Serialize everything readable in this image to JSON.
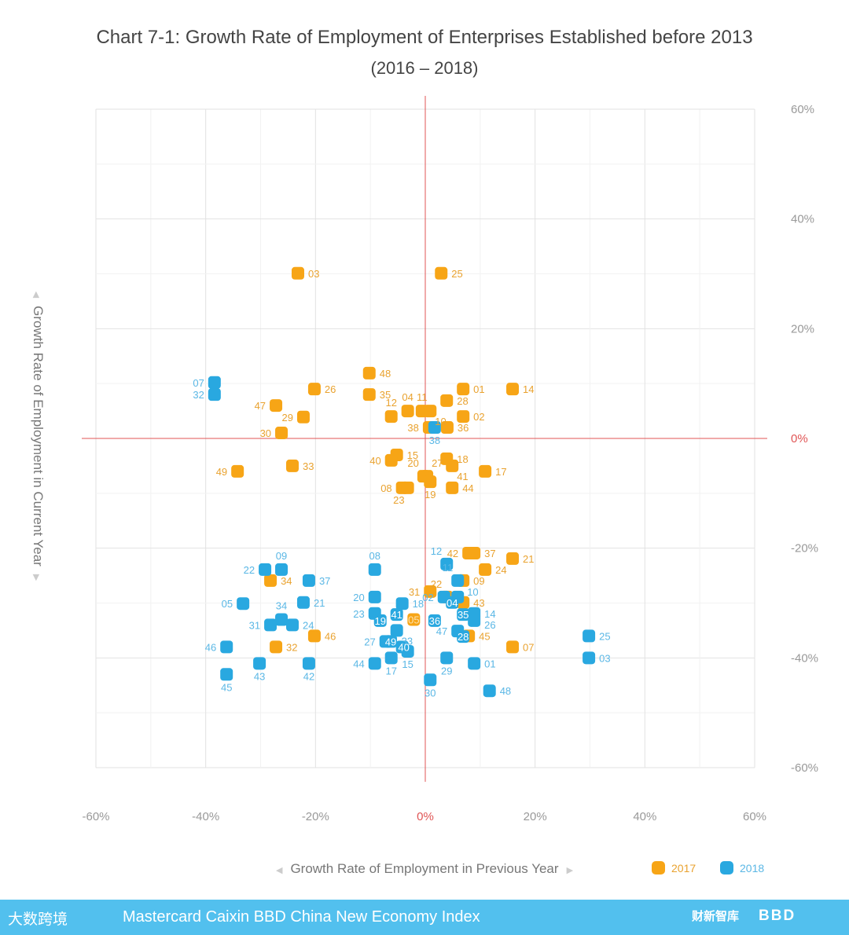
{
  "chart_data": {
    "type": "scatter",
    "title": "Chart 7-1: Growth Rate of Employment of Enterprises Established before 2013",
    "subtitle": "(2016 – 2018)",
    "xlabel": "Growth Rate of Employment in Previous Year",
    "ylabel": "Growth Rate of Employment in Current Year",
    "xlim": [
      -60,
      60
    ],
    "ylim": [
      -60,
      60
    ],
    "x_ticks": [
      "-60%",
      "-40%",
      "-20%",
      "0%",
      "20%",
      "40%",
      "60%"
    ],
    "y_ticks": [
      "60%",
      "40%",
      "20%",
      "0%",
      "-20%",
      "-40%",
      "-60%"
    ],
    "grid": true,
    "legend_position": "bottom-right",
    "series": [
      {
        "name": "2017",
        "color": "#f7a516",
        "label_color": "#e9a22f",
        "points": [
          {
            "id": "03",
            "x": -23.2,
            "y": 30.1,
            "pos": "r"
          },
          {
            "id": "25",
            "x": 2.9,
            "y": 30.1,
            "pos": "r"
          },
          {
            "id": "48",
            "x": -10.2,
            "y": 11.9,
            "pos": "r"
          },
          {
            "id": "26",
            "x": -20.2,
            "y": 9.0,
            "pos": "r"
          },
          {
            "id": "35",
            "x": -10.2,
            "y": 8.0,
            "pos": "r"
          },
          {
            "id": "01",
            "x": 6.9,
            "y": 9.0,
            "pos": "r"
          },
          {
            "id": "14",
            "x": 15.9,
            "y": 9.0,
            "pos": "r"
          },
          {
            "id": "47",
            "x": -27.2,
            "y": 6.0,
            "pos": "l"
          },
          {
            "id": "29",
            "x": -22.2,
            "y": 3.9,
            "pos": "l"
          },
          {
            "id": "30",
            "x": -26.2,
            "y": 1.0,
            "pos": "l"
          },
          {
            "id": "12",
            "x": -6.2,
            "y": 4.0,
            "pos": "t"
          },
          {
            "id": "04",
            "x": -3.2,
            "y": 5.0,
            "pos": "t"
          },
          {
            "id": "11",
            "x": -0.6,
            "y": 5.0,
            "pos": "t"
          },
          {
            "id": "10",
            "x": 0.9,
            "y": 5.0,
            "pos": "br"
          },
          {
            "id": "28",
            "x": 3.9,
            "y": 6.9,
            "pos": "r"
          },
          {
            "id": "02",
            "x": 6.9,
            "y": 4.0,
            "pos": "r"
          },
          {
            "id": "38",
            "x": 0.7,
            "y": 2.0,
            "pos": "l"
          },
          {
            "id": "36",
            "x": 4.0,
            "y": 2.0,
            "pos": "r"
          },
          {
            "id": "15",
            "x": -5.2,
            "y": -3.0,
            "pos": "r"
          },
          {
            "id": "40",
            "x": -6.2,
            "y": -4.0,
            "pos": "l"
          },
          {
            "id": "18",
            "x": 3.9,
            "y": -3.7,
            "pos": "r"
          },
          {
            "id": "41",
            "x": 4.9,
            "y": -5.0,
            "pos": "br"
          },
          {
            "id": "17",
            "x": 10.9,
            "y": -6.0,
            "pos": "r"
          },
          {
            "id": "49",
            "x": -34.2,
            "y": -6.0,
            "pos": "l"
          },
          {
            "id": "33",
            "x": -24.2,
            "y": -5.0,
            "pos": "r"
          },
          {
            "id": "27",
            "x": 0.3,
            "y": -6.9,
            "pos": "tr"
          },
          {
            "id": "20",
            "x": -0.3,
            "y": -6.9,
            "pos": "tl"
          },
          {
            "id": "19",
            "x": 0.9,
            "y": -7.9,
            "pos": "b"
          },
          {
            "id": "08",
            "x": -4.2,
            "y": -9.0,
            "pos": "l"
          },
          {
            "id": "23",
            "x": -3.2,
            "y": -9.0,
            "pos": "bl"
          },
          {
            "id": "44",
            "x": 4.9,
            "y": -9.0,
            "pos": "r"
          },
          {
            "id": "42",
            "x": 7.9,
            "y": -20.9,
            "pos": "l"
          },
          {
            "id": "37",
            "x": 8.9,
            "y": -20.9,
            "pos": "r"
          },
          {
            "id": "21",
            "x": 15.9,
            "y": -21.9,
            "pos": "r"
          },
          {
            "id": "24",
            "x": 10.9,
            "y": -23.9,
            "pos": "r"
          },
          {
            "id": "09",
            "x": 6.9,
            "y": -25.9,
            "pos": "r"
          },
          {
            "id": "34",
            "x": -28.2,
            "y": -25.9,
            "pos": "r"
          },
          {
            "id": "31",
            "x": 0.9,
            "y": -27.9,
            "pos": "l"
          },
          {
            "id": "22",
            "x": 3.9,
            "y": -28.9,
            "pos": "tl"
          },
          {
            "id": "43",
            "x": 6.9,
            "y": -29.9,
            "pos": "r"
          },
          {
            "id": "05",
            "x": -2.1,
            "y": -33.0,
            "pos": "c"
          },
          {
            "id": "45",
            "x": 7.9,
            "y": -36.0,
            "pos": "r"
          },
          {
            "id": "46",
            "x": -20.2,
            "y": -36.0,
            "pos": "r"
          },
          {
            "id": "32",
            "x": -27.2,
            "y": -38.0,
            "pos": "r"
          },
          {
            "id": "07",
            "x": 15.9,
            "y": -38.0,
            "pos": "r"
          }
        ]
      },
      {
        "name": "2018",
        "color": "#29a8e0",
        "label_color": "#5ab7e5",
        "points": [
          {
            "id": "07",
            "x": -38.4,
            "y": 10.2,
            "pos": "l"
          },
          {
            "id": "32",
            "x": -38.4,
            "y": 8.0,
            "pos": "l"
          },
          {
            "id": "38",
            "x": 1.7,
            "y": 2.0,
            "pos": "b"
          },
          {
            "id": "09",
            "x": -26.2,
            "y": -23.9,
            "pos": "t"
          },
          {
            "id": "22",
            "x": -29.2,
            "y": -23.9,
            "pos": "l"
          },
          {
            "id": "37",
            "x": -21.2,
            "y": -25.9,
            "pos": "r"
          },
          {
            "id": "05",
            "x": -33.2,
            "y": -30.1,
            "pos": "l"
          },
          {
            "id": "21",
            "x": -22.2,
            "y": -29.9,
            "pos": "r"
          },
          {
            "id": "34",
            "x": -26.2,
            "y": -33.0,
            "pos": "t"
          },
          {
            "id": "31",
            "x": -28.2,
            "y": -34.0,
            "pos": "l"
          },
          {
            "id": "24",
            "x": -24.2,
            "y": -34.0,
            "pos": "r"
          },
          {
            "id": "46",
            "x": -36.2,
            "y": -38.0,
            "pos": "l"
          },
          {
            "id": "43",
            "x": -30.2,
            "y": -41.0,
            "pos": "b"
          },
          {
            "id": "42",
            "x": -21.2,
            "y": -41.0,
            "pos": "b"
          },
          {
            "id": "45",
            "x": -36.2,
            "y": -43.0,
            "pos": "b"
          },
          {
            "id": "08",
            "x": -9.2,
            "y": -23.9,
            "pos": "t"
          },
          {
            "id": "12",
            "x": 3.9,
            "y": -22.9,
            "pos": "tl"
          },
          {
            "id": "11",
            "x": 5.9,
            "y": -25.9,
            "pos": "tl"
          },
          {
            "id": "20",
            "x": -9.2,
            "y": -28.9,
            "pos": "l"
          },
          {
            "id": "18",
            "x": -4.2,
            "y": -30.1,
            "pos": "r"
          },
          {
            "id": "02",
            "x": 3.4,
            "y": -28.9,
            "pos": "l"
          },
          {
            "id": "10",
            "x": 5.9,
            "y": -28.9,
            "pos": "tr"
          },
          {
            "id": "04",
            "x": 4.9,
            "y": -29.9,
            "pos": "c"
          },
          {
            "id": "23",
            "x": -9.2,
            "y": -31.9,
            "pos": "l"
          },
          {
            "id": "19",
            "x": -8.2,
            "y": -33.2,
            "pos": "c"
          },
          {
            "id": "41",
            "x": -5.2,
            "y": -32.1,
            "pos": "c"
          },
          {
            "id": "36",
            "x": 1.7,
            "y": -33.2,
            "pos": "c"
          },
          {
            "id": "35",
            "x": 6.9,
            "y": -32.1,
            "pos": "c"
          },
          {
            "id": "14",
            "x": 8.9,
            "y": -31.9,
            "pos": "r"
          },
          {
            "id": "26",
            "x": 8.9,
            "y": -33.2,
            "pos": "br"
          },
          {
            "id": "33",
            "x": -5.2,
            "y": -35.0,
            "pos": "br"
          },
          {
            "id": "47",
            "x": 5.9,
            "y": -35.1,
            "pos": "l"
          },
          {
            "id": "28",
            "x": 6.9,
            "y": -36.1,
            "pos": "c"
          },
          {
            "id": "27",
            "x": -7.2,
            "y": -37.0,
            "pos": "l"
          },
          {
            "id": "49",
            "x": -6.3,
            "y": -37.0,
            "pos": "c"
          },
          {
            "id": "40",
            "x": -4.2,
            "y": -38.0,
            "pos": "c"
          },
          {
            "id": "15",
            "x": -3.2,
            "y": -38.8,
            "pos": "b"
          },
          {
            "id": "17",
            "x": -6.2,
            "y": -40.0,
            "pos": "b"
          },
          {
            "id": "44",
            "x": -9.2,
            "y": -41.0,
            "pos": "l"
          },
          {
            "id": "29",
            "x": 3.9,
            "y": -40.0,
            "pos": "b"
          },
          {
            "id": "01",
            "x": 8.9,
            "y": -41.0,
            "pos": "r"
          },
          {
            "id": "30",
            "x": 0.9,
            "y": -44.0,
            "pos": "b"
          },
          {
            "id": "48",
            "x": 11.7,
            "y": -46.0,
            "pos": "r"
          },
          {
            "id": "25",
            "x": 29.8,
            "y": -36.0,
            "pos": "r"
          },
          {
            "id": "03",
            "x": 29.8,
            "y": -40.0,
            "pos": "r"
          }
        ]
      }
    ]
  },
  "footer": {
    "text": "Mastercard Caixin BBD China New Economy Index",
    "logo_left": "大数跨境",
    "logo_right_1": "财新智库",
    "logo_right_2": "BBD"
  },
  "colors": {
    "axis_zero": "#e05555",
    "footer_bg": "#52c0ee"
  }
}
